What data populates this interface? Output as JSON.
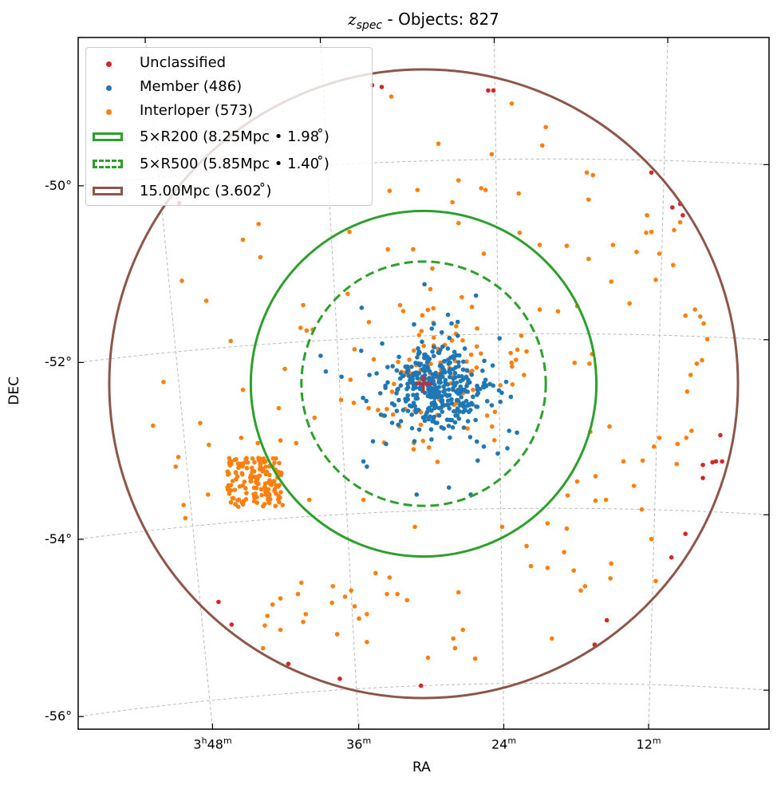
{
  "chart_data": {
    "type": "scatter",
    "title": {
      "var": "z",
      "sub": "spec",
      "rest": " - Objects: 827"
    },
    "xlabel": "RA",
    "ylabel": "DEC",
    "projection": "sky (RA/Dec, gnomonic-like), RA increasing to the left",
    "grid": true,
    "legend_placement": "top-left",
    "point_units": "tangent-plane offset from cluster centre in degrees [x (west = +), y (north = +)]",
    "ra_ticks": [
      {
        "ra_deg": 57,
        "parts": [
          "3",
          "h",
          "48",
          "m"
        ]
      },
      {
        "ra_deg": 54,
        "parts": [
          "36",
          "m"
        ]
      },
      {
        "ra_deg": 51,
        "parts": [
          "24",
          "m"
        ]
      },
      {
        "ra_deg": 48,
        "parts": [
          "12",
          "m"
        ]
      }
    ],
    "dec_ticks": [
      {
        "dec_deg": -50,
        "label": "-50°"
      },
      {
        "dec_deg": -52,
        "label": "-52°"
      },
      {
        "dec_deg": -54,
        "label": "-54°"
      },
      {
        "dec_deg": -56,
        "label": "-56°"
      }
    ],
    "circles": [
      {
        "name": "5×R200 (8.25Mpc • 1.98 ̊)",
        "radius_deg": 1.98,
        "radius_mpc": 8.25,
        "style": "solid",
        "color": "#2ca02c"
      },
      {
        "name": "5×R500 (5.85Mpc • 1.40 ̊)",
        "radius_deg": 1.4,
        "radius_mpc": 5.85,
        "style": "dashed",
        "color": "#2ca02c"
      },
      {
        "name": "15.00Mpc (3.602 ̊)",
        "radius_deg": 3.602,
        "radius_mpc": 15.0,
        "style": "solid",
        "color": "#8c564b"
      }
    ],
    "center_marker": {
      "symbol": "+",
      "color": "#d62728"
    },
    "series": [
      {
        "name": "Unclassified",
        "color": "#d62728",
        "points": [
          [
            -0.48,
            3.4
          ],
          [
            -0.59,
            3.42
          ],
          [
            0.74,
            3.36
          ],
          [
            0.8,
            3.36
          ],
          [
            2.61,
            2.42
          ],
          [
            2.85,
            2.02
          ],
          [
            2.94,
            2.06
          ],
          [
            2.97,
            1.93
          ],
          [
            3.4,
            -0.59
          ],
          [
            3.31,
            -0.9
          ],
          [
            3.35,
            -0.89
          ],
          [
            3.42,
            -0.89
          ],
          [
            3.2,
            -0.93
          ],
          [
            3.2,
            -1.08
          ],
          [
            3.0,
            -1.72
          ],
          [
            2.84,
            -1.99
          ],
          [
            2.1,
            -2.71
          ],
          [
            1.96,
            -2.99
          ],
          [
            -1.55,
            -3.21
          ],
          [
            -0.96,
            -3.38
          ],
          [
            -0.03,
            -3.46
          ],
          [
            -2.35,
            -2.5
          ],
          [
            -2.2,
            -2.76
          ],
          [
            -2.8,
            2.07
          ]
        ]
      },
      {
        "name": "Member (486)",
        "color": "#1f77b4",
        "groups": [
          {
            "center": [
              0.15,
              -0.05
            ],
            "sigma": [
              0.28,
              0.25
            ],
            "count": 380
          }
        ],
        "points": [
          [
            -0.71,
            0.87
          ],
          [
            -1.18,
            0.32
          ],
          [
            -1.12,
            0.14
          ],
          [
            -0.94,
            0.08
          ],
          [
            -0.11,
            0.68
          ],
          [
            0.32,
            0.69
          ],
          [
            0.6,
            1.01
          ],
          [
            0.28,
            0.79
          ],
          [
            0.87,
            0.52
          ],
          [
            -0.69,
            -0.89
          ],
          [
            -0.65,
            -0.95
          ],
          [
            -0.43,
            -0.69
          ],
          [
            -0.08,
            -1.27
          ],
          [
            0.29,
            -1.19
          ],
          [
            0.62,
            -0.88
          ],
          [
            0.69,
            -0.72
          ],
          [
            0.85,
            -0.8
          ],
          [
            0.96,
            -0.74
          ],
          [
            0.54,
            -1.27
          ],
          [
            0.98,
            -0.54
          ],
          [
            1.07,
            -0.56
          ],
          [
            0.01,
            1.14
          ],
          [
            -0.58,
            -0.66
          ],
          [
            1.0,
            -0.15
          ]
        ]
      },
      {
        "name": "Interloper (573)",
        "color": "#ff7f0e",
        "groups": [
          {
            "center": [
              0.1,
              0.0
            ],
            "sigma": [
              0.45,
              0.45
            ],
            "count": 110
          },
          {
            "center": [
              -1.93,
              -1.13
            ],
            "half_width": [
              0.32,
              0.28
            ],
            "count": 160,
            "distribution": "uniform"
          }
        ],
        "points": [
          [
            -0.37,
            3.29
          ],
          [
            1.01,
            3.21
          ],
          [
            1.4,
            2.94
          ],
          [
            0.17,
            2.75
          ],
          [
            1.36,
            2.73
          ],
          [
            0.78,
            2.63
          ],
          [
            1.87,
            2.42
          ],
          [
            1.94,
            2.39
          ],
          [
            -0.39,
            2.21
          ],
          [
            -0.07,
            2.22
          ],
          [
            0.4,
            2.33
          ],
          [
            0.66,
            2.24
          ],
          [
            0.71,
            2.22
          ],
          [
            0.33,
            2.08
          ],
          [
            1.89,
            2.11
          ],
          [
            1.09,
            2.18
          ],
          [
            2.56,
            1.93
          ],
          [
            -0.85,
            1.74
          ],
          [
            -2.07,
            1.65
          ],
          [
            -1.89,
            1.83
          ],
          [
            0.4,
            1.84
          ],
          [
            1.1,
            1.73
          ],
          [
            1.64,
            1.58
          ],
          [
            1.33,
            1.59
          ],
          [
            2.17,
            1.59
          ],
          [
            2.44,
            1.51
          ],
          [
            2.55,
            1.73
          ],
          [
            2.61,
            1.74
          ],
          [
            2.7,
            1.49
          ],
          [
            2.87,
            1.76
          ],
          [
            2.94,
            1.85
          ],
          [
            1.89,
            1.43
          ],
          [
            -1.87,
            1.45
          ],
          [
            -0.41,
            1.54
          ],
          [
            -0.12,
            1.54
          ],
          [
            0.69,
            1.49
          ],
          [
            0.1,
            1.32
          ],
          [
            2.15,
            1.17
          ],
          [
            2.86,
            1.36
          ],
          [
            2.66,
            1.19
          ],
          [
            -2.77,
            1.18
          ],
          [
            -2.49,
            0.95
          ],
          [
            -1.38,
            0.9
          ],
          [
            -0.87,
            1.03
          ],
          [
            -0.27,
            0.9
          ],
          [
            1.33,
            0.85
          ],
          [
            1.54,
            0.83
          ],
          [
            1.76,
            0.89
          ],
          [
            2.36,
            0.92
          ],
          [
            3.0,
            0.78
          ],
          [
            3.11,
            0.85
          ],
          [
            3.17,
            0.77
          ],
          [
            3.21,
            0.69
          ],
          [
            3.25,
            0.51
          ],
          [
            -2.21,
            0.49
          ],
          [
            -1.41,
            0.64
          ],
          [
            -1.34,
            0.61
          ],
          [
            -1.27,
            0.62
          ],
          [
            1.12,
            0.55
          ],
          [
            1.18,
            0.37
          ],
          [
            1.15,
            0.1
          ],
          [
            1.73,
            0.24
          ],
          [
            1.93,
            0.34
          ],
          [
            1.9,
            0.23
          ],
          [
            3.06,
            0.1
          ],
          [
            3.13,
            0.23
          ],
          [
            3.19,
            0.27
          ],
          [
            3.02,
            -0.09
          ],
          [
            -2.98,
            0.02
          ],
          [
            -1.59,
            0.17
          ],
          [
            -2.07,
            -0.07
          ],
          [
            -1.66,
            -0.28
          ],
          [
            -0.8,
            -0.22
          ],
          [
            -0.63,
            -0.28
          ],
          [
            -3.1,
            -0.48
          ],
          [
            -2.56,
            -0.45
          ],
          [
            -2.81,
            -0.84
          ],
          [
            -2.84,
            -0.95
          ],
          [
            -2.46,
            -0.7
          ],
          [
            -2.09,
            -0.62
          ],
          [
            -1.9,
            -0.68
          ],
          [
            -1.64,
            -0.65
          ],
          [
            -1.46,
            -0.68
          ],
          [
            -1.25,
            -0.39
          ],
          [
            2.13,
            -0.49
          ],
          [
            1.91,
            -0.55
          ],
          [
            3.07,
            -0.54
          ],
          [
            3.01,
            -0.62
          ],
          [
            2.51,
            -0.88
          ],
          [
            2.29,
            -0.89
          ],
          [
            2.7,
            -0.62
          ],
          [
            2.91,
            -0.69
          ],
          [
            2.64,
            -0.72
          ],
          [
            2.9,
            -0.92
          ],
          [
            2.41,
            -1.17
          ],
          [
            1.97,
            -1.06
          ],
          [
            1.76,
            -1.12
          ],
          [
            1.65,
            -1.28
          ],
          [
            1.97,
            -1.34
          ],
          [
            -2.75,
            -1.39
          ],
          [
            -2.73,
            -1.54
          ],
          [
            -2.47,
            -1.27
          ],
          [
            -1.31,
            -1.33
          ],
          [
            -0.69,
            -1.33
          ],
          [
            -0.1,
            -1.64
          ],
          [
            0.9,
            -1.64
          ],
          [
            1.42,
            -1.6
          ],
          [
            1.64,
            -1.66
          ],
          [
            2.09,
            -1.33
          ],
          [
            2.5,
            -1.44
          ],
          [
            2.61,
            -1.78
          ],
          [
            1.18,
            -1.86
          ],
          [
            1.23,
            -2.09
          ],
          [
            1.61,
            -1.93
          ],
          [
            1.42,
            -2.11
          ],
          [
            1.72,
            -2.14
          ],
          [
            1.85,
            -2.32
          ],
          [
            1.8,
            -2.37
          ],
          [
            2.14,
            -2.23
          ],
          [
            2.15,
            -2.06
          ],
          [
            2.66,
            -2.26
          ],
          [
            -1.04,
            -2.32
          ],
          [
            -1.4,
            -2.28
          ],
          [
            -1.64,
            -2.46
          ],
          [
            -1.44,
            -2.41
          ],
          [
            -1.35,
            -2.64
          ],
          [
            -1.38,
            -2.73
          ],
          [
            -1.73,
            -2.53
          ],
          [
            -1.79,
            -2.66
          ],
          [
            -1.05,
            -2.51
          ],
          [
            -0.9,
            -2.44
          ],
          [
            -0.83,
            -2.37
          ],
          [
            -0.79,
            -2.55
          ],
          [
            -0.74,
            -2.69
          ],
          [
            -0.65,
            -2.64
          ],
          [
            -0.55,
            -2.17
          ],
          [
            -0.39,
            -2.22
          ],
          [
            -0.3,
            -2.41
          ],
          [
            -0.19,
            -2.48
          ],
          [
            -0.42,
            -2.41
          ],
          [
            0.4,
            -2.39
          ],
          [
            0.45,
            -2.82
          ],
          [
            1.47,
            -2.92
          ],
          [
            0.34,
            -2.92
          ],
          [
            0.36,
            -3.03
          ],
          [
            0.59,
            -3.15
          ],
          [
            0.05,
            -3.14
          ],
          [
            -0.65,
            -2.96
          ],
          [
            -0.99,
            -2.87
          ],
          [
            -1.64,
            -2.82
          ],
          [
            -1.82,
            -2.77
          ],
          [
            -1.84,
            -3.03
          ]
        ]
      }
    ]
  }
}
